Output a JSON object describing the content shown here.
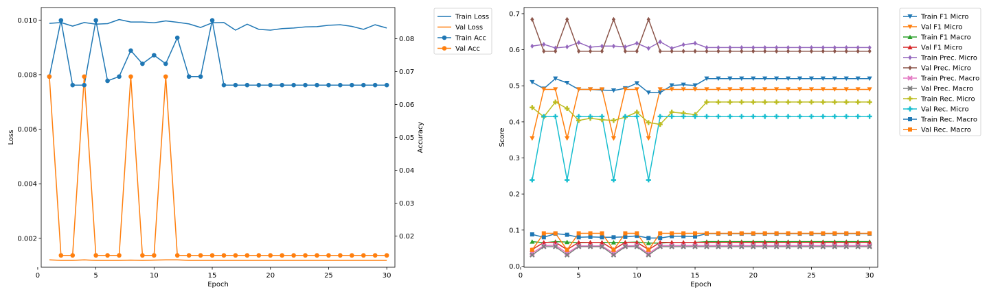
{
  "chart_data": [
    {
      "type": "line",
      "title": "",
      "xlabel": "Epoch",
      "ylabel": "Loss",
      "ylabel_right": "Accuracy",
      "x": [
        1,
        2,
        3,
        4,
        5,
        6,
        7,
        8,
        9,
        10,
        11,
        12,
        13,
        14,
        15,
        16,
        17,
        18,
        19,
        20,
        21,
        22,
        23,
        24,
        25,
        26,
        27,
        28,
        29,
        30
      ],
      "xlim": [
        0.3,
        30.7
      ],
      "xticks": [
        0,
        5,
        10,
        15,
        20,
        25,
        30
      ],
      "ylim_left": [
        0.00094,
        0.01046
      ],
      "yticks_left": [
        "0.002",
        "0.004",
        "0.006",
        "0.008",
        "0.010"
      ],
      "ylim_right": [
        0.0105,
        0.0895
      ],
      "yticks_right": [
        "0.02",
        "0.03",
        "0.04",
        "0.05",
        "0.06",
        "0.07",
        "0.08"
      ],
      "legend_position": "outside-right",
      "series": [
        {
          "name": "Train Loss",
          "axis": "left",
          "color": "#1f77b4",
          "marker": "none",
          "values": [
            0.00988,
            0.00991,
            0.00978,
            0.00991,
            0.00985,
            0.00987,
            0.01002,
            0.00993,
            0.00993,
            0.0099,
            0.00997,
            0.00992,
            0.00986,
            0.00973,
            0.0099,
            0.00991,
            0.00963,
            0.00985,
            0.00966,
            0.00963,
            0.00969,
            0.00971,
            0.00975,
            0.00976,
            0.00981,
            0.00983,
            0.00977,
            0.00966,
            0.00983,
            0.00971
          ]
        },
        {
          "name": "Val Loss",
          "axis": "left",
          "color": "#ff7f0e",
          "marker": "none",
          "values": [
            0.00121,
            0.00119,
            0.00119,
            0.00121,
            0.00119,
            0.00119,
            0.00119,
            0.0012,
            0.00119,
            0.0012,
            0.00121,
            0.00121,
            0.00119,
            0.00119,
            0.00119,
            0.00119,
            0.00119,
            0.00119,
            0.00119,
            0.00119,
            0.00119,
            0.00119,
            0.00119,
            0.00119,
            0.00119,
            0.00119,
            0.00119,
            0.00119,
            0.00119,
            0.00119
          ]
        },
        {
          "name": "Train Acc",
          "axis": "right",
          "color": "#1f77b4",
          "marker": "circle",
          "values": [
            0.0685,
            0.0856,
            0.0659,
            0.0659,
            0.0856,
            0.0672,
            0.0685,
            0.0764,
            0.0724,
            0.075,
            0.0724,
            0.0803,
            0.0685,
            0.0685,
            0.0856,
            0.0659,
            0.0659,
            0.0659,
            0.0659,
            0.0659,
            0.0659,
            0.0659,
            0.0659,
            0.0659,
            0.0659,
            0.0659,
            0.0659,
            0.0659,
            0.0659,
            0.0659
          ]
        },
        {
          "name": "Val Acc",
          "axis": "right",
          "color": "#ff7f0e",
          "marker": "circle",
          "values": [
            0.0685,
            0.0141,
            0.0141,
            0.0685,
            0.0141,
            0.0141,
            0.0141,
            0.0685,
            0.0141,
            0.0141,
            0.0685,
            0.0141,
            0.0141,
            0.0141,
            0.0141,
            0.0141,
            0.0141,
            0.0141,
            0.0141,
            0.0141,
            0.0141,
            0.0141,
            0.0141,
            0.0141,
            0.0141,
            0.0141,
            0.0141,
            0.0141,
            0.0141,
            0.0141
          ]
        }
      ]
    },
    {
      "type": "line",
      "title": "",
      "xlabel": "Epoch",
      "ylabel": "Score",
      "x": [
        1,
        2,
        3,
        4,
        5,
        6,
        7,
        8,
        9,
        10,
        11,
        12,
        13,
        14,
        15,
        16,
        17,
        18,
        19,
        20,
        21,
        22,
        23,
        24,
        25,
        26,
        27,
        28,
        29,
        30
      ],
      "xlim": [
        0.3,
        30.7
      ],
      "xticks": [
        0,
        5,
        10,
        15,
        20,
        25,
        30
      ],
      "ylim": [
        -0.003,
        0.717
      ],
      "yticks": [
        "0.0",
        "0.1",
        "0.2",
        "0.3",
        "0.4",
        "0.5",
        "0.6",
        "0.7"
      ],
      "legend_position": "outside-right",
      "series": [
        {
          "name": "Train F1 Micro",
          "color": "#1f77b4",
          "marker": "triangle_down",
          "values": [
            0.51,
            0.492,
            0.52,
            0.508,
            0.49,
            0.49,
            0.488,
            0.487,
            0.493,
            0.507,
            0.481,
            0.481,
            0.501,
            0.503,
            0.501,
            0.52,
            0.52,
            0.52,
            0.52,
            0.52,
            0.52,
            0.52,
            0.52,
            0.52,
            0.52,
            0.52,
            0.52,
            0.52,
            0.52,
            0.52
          ]
        },
        {
          "name": "Val F1 Micro",
          "color": "#ff7f0e",
          "marker": "triangle_down",
          "values": [
            0.354,
            0.49,
            0.49,
            0.354,
            0.49,
            0.49,
            0.49,
            0.354,
            0.49,
            0.49,
            0.354,
            0.49,
            0.49,
            0.49,
            0.49,
            0.49,
            0.49,
            0.49,
            0.49,
            0.49,
            0.49,
            0.49,
            0.49,
            0.49,
            0.49,
            0.49,
            0.49,
            0.49,
            0.49,
            0.49
          ]
        },
        {
          "name": "Train F1 Macro",
          "color": "#2ca02c",
          "marker": "triangle_up",
          "values": [
            0.068,
            0.065,
            0.068,
            0.067,
            0.065,
            0.066,
            0.066,
            0.066,
            0.066,
            0.067,
            0.064,
            0.064,
            0.066,
            0.066,
            0.066,
            0.068,
            0.068,
            0.068,
            0.068,
            0.068,
            0.068,
            0.068,
            0.068,
            0.068,
            0.068,
            0.068,
            0.068,
            0.068,
            0.068,
            0.068
          ]
        },
        {
          "name": "Val F1 Micro",
          "color": "#d62728",
          "marker": "triangle_up",
          "values": [
            0.046,
            0.066,
            0.066,
            0.046,
            0.066,
            0.066,
            0.066,
            0.046,
            0.066,
            0.066,
            0.046,
            0.066,
            0.066,
            0.066,
            0.066,
            0.066,
            0.066,
            0.066,
            0.066,
            0.066,
            0.066,
            0.066,
            0.066,
            0.066,
            0.066,
            0.066,
            0.066,
            0.066,
            0.066,
            0.066
          ]
        },
        {
          "name": "Train Prec. Micro",
          "color": "#9467bd",
          "marker": "diamond",
          "values": [
            0.61,
            0.615,
            0.605,
            0.608,
            0.62,
            0.607,
            0.61,
            0.61,
            0.608,
            0.618,
            0.604,
            0.622,
            0.604,
            0.614,
            0.618,
            0.606,
            0.606,
            0.606,
            0.606,
            0.606,
            0.606,
            0.606,
            0.606,
            0.606,
            0.606,
            0.606,
            0.606,
            0.606,
            0.606,
            0.606
          ]
        },
        {
          "name": "Val Prec. Micro",
          "color": "#8c564b",
          "marker": "diamond",
          "values": [
            0.684,
            0.596,
            0.596,
            0.684,
            0.596,
            0.596,
            0.596,
            0.684,
            0.596,
            0.596,
            0.684,
            0.596,
            0.596,
            0.596,
            0.596,
            0.596,
            0.596,
            0.596,
            0.596,
            0.596,
            0.596,
            0.596,
            0.596,
            0.596,
            0.596,
            0.596,
            0.596,
            0.596,
            0.596,
            0.596
          ]
        },
        {
          "name": "Train Prec. Macro",
          "color": "#e377c2",
          "marker": "x",
          "values": [
            0.036,
            0.057,
            0.058,
            0.036,
            0.056,
            0.056,
            0.056,
            0.036,
            0.056,
            0.057,
            0.035,
            0.057,
            0.057,
            0.057,
            0.057,
            0.057,
            0.057,
            0.057,
            0.057,
            0.057,
            0.057,
            0.057,
            0.057,
            0.057,
            0.057,
            0.057,
            0.057,
            0.057,
            0.057,
            0.057
          ]
        },
        {
          "name": "Val Prec. Macro",
          "color": "#7f7f7f",
          "marker": "x",
          "values": [
            0.031,
            0.054,
            0.054,
            0.031,
            0.054,
            0.054,
            0.054,
            0.031,
            0.054,
            0.054,
            0.031,
            0.054,
            0.054,
            0.054,
            0.054,
            0.054,
            0.054,
            0.054,
            0.054,
            0.054,
            0.054,
            0.054,
            0.054,
            0.054,
            0.054,
            0.054,
            0.054,
            0.054,
            0.054,
            0.054
          ]
        },
        {
          "name": "Train Rec. Micro",
          "color": "#bcbd22",
          "marker": "plus",
          "values": [
            0.44,
            0.414,
            0.455,
            0.437,
            0.404,
            0.41,
            0.406,
            0.404,
            0.413,
            0.427,
            0.398,
            0.393,
            0.427,
            0.424,
            0.42,
            0.455,
            0.455,
            0.455,
            0.455,
            0.455,
            0.455,
            0.455,
            0.455,
            0.455,
            0.455,
            0.455,
            0.455,
            0.455,
            0.455,
            0.455
          ]
        },
        {
          "name": "Val Rec. Micro",
          "color": "#17becf",
          "marker": "plus",
          "values": [
            0.239,
            0.415,
            0.415,
            0.239,
            0.415,
            0.415,
            0.415,
            0.239,
            0.415,
            0.415,
            0.239,
            0.415,
            0.415,
            0.415,
            0.415,
            0.415,
            0.415,
            0.415,
            0.415,
            0.415,
            0.415,
            0.415,
            0.415,
            0.415,
            0.415,
            0.415,
            0.415,
            0.415,
            0.415,
            0.415
          ]
        },
        {
          "name": "Train Rec. Macro",
          "color": "#1f77b4",
          "marker": "square",
          "values": [
            0.088,
            0.08,
            0.09,
            0.087,
            0.08,
            0.081,
            0.08,
            0.08,
            0.081,
            0.084,
            0.078,
            0.078,
            0.083,
            0.083,
            0.082,
            0.09,
            0.09,
            0.09,
            0.09,
            0.09,
            0.09,
            0.09,
            0.09,
            0.09,
            0.09,
            0.09,
            0.09,
            0.09,
            0.09,
            0.09
          ]
        },
        {
          "name": "Val Rec. Macro",
          "color": "#ff7f0e",
          "marker": "square",
          "values": [
            0.045,
            0.091,
            0.091,
            0.045,
            0.091,
            0.091,
            0.091,
            0.045,
            0.091,
            0.091,
            0.045,
            0.091,
            0.091,
            0.091,
            0.091,
            0.091,
            0.091,
            0.091,
            0.091,
            0.091,
            0.091,
            0.091,
            0.091,
            0.091,
            0.091,
            0.091,
            0.091,
            0.091,
            0.091,
            0.091
          ]
        }
      ]
    }
  ]
}
